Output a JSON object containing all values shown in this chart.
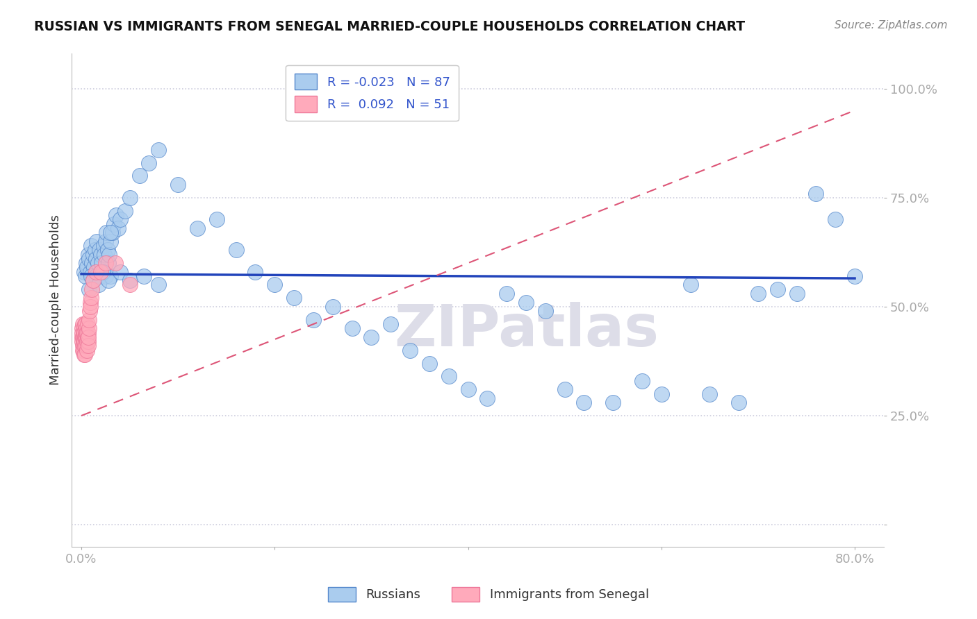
{
  "title": "RUSSIAN VS IMMIGRANTS FROM SENEGAL MARRIED-COUPLE HOUSEHOLDS CORRELATION CHART",
  "source": "Source: ZipAtlas.com",
  "ylabel": "Married-couple Households",
  "xlim": [
    -1.0,
    83.0
  ],
  "ylim": [
    -5.0,
    108.0
  ],
  "ytick_positions": [
    0,
    25,
    50,
    75,
    100
  ],
  "ytick_labels": [
    "",
    "25.0%",
    "50.0%",
    "75.0%",
    "100.0%"
  ],
  "xtick_positions": [
    0,
    20,
    40,
    60,
    80
  ],
  "xtick_labels": [
    "0.0%",
    "",
    "",
    "",
    "80.0%"
  ],
  "blue_color": "#AACCEE",
  "pink_color": "#FFAABB",
  "blue_edge_color": "#5588CC",
  "pink_edge_color": "#EE7799",
  "blue_line_color": "#2244BB",
  "pink_line_color": "#DD5577",
  "grid_color": "#CCCCDD",
  "tick_color": "#4466BB",
  "watermark_color": "#DDDDE8",
  "legend_R_blue": "-0.023",
  "legend_N_blue": "87",
  "legend_R_pink": "0.092",
  "legend_N_pink": "51",
  "blue_x": [
    0.3,
    0.4,
    0.5,
    0.6,
    0.7,
    0.8,
    0.9,
    1.0,
    1.1,
    1.2,
    1.3,
    1.4,
    1.5,
    1.6,
    1.7,
    1.8,
    1.9,
    2.0,
    2.1,
    2.2,
    2.3,
    2.4,
    2.5,
    2.6,
    2.7,
    2.8,
    2.9,
    3.0,
    3.2,
    3.4,
    3.6,
    3.8,
    4.0,
    4.5,
    5.0,
    6.0,
    7.0,
    8.0,
    10.0,
    12.0,
    14.0,
    16.0,
    18.0,
    20.0,
    22.0,
    24.0,
    26.0,
    28.0,
    30.0,
    32.0,
    34.0,
    36.0,
    38.0,
    40.0,
    42.0,
    44.0,
    46.0,
    48.0,
    50.0,
    52.0,
    55.0,
    58.0,
    60.0,
    63.0,
    65.0,
    68.0,
    70.0,
    72.0,
    74.0,
    76.0,
    78.0,
    80.0,
    1.0,
    1.5,
    2.0,
    2.5,
    3.0,
    3.0,
    0.8,
    1.2,
    1.8,
    2.2,
    2.8,
    4.0,
    5.0,
    6.5,
    8.0
  ],
  "blue_y": [
    58.0,
    57.0,
    60.0,
    59.0,
    62.0,
    61.0,
    58.0,
    64.0,
    60.0,
    62.0,
    59.0,
    63.0,
    61.0,
    65.0,
    60.0,
    57.0,
    63.0,
    62.0,
    60.0,
    58.0,
    64.0,
    62.0,
    65.0,
    67.0,
    63.0,
    60.0,
    62.0,
    65.0,
    67.0,
    69.0,
    71.0,
    68.0,
    70.0,
    72.0,
    75.0,
    80.0,
    83.0,
    86.0,
    78.0,
    68.0,
    70.0,
    63.0,
    58.0,
    55.0,
    52.0,
    47.0,
    50.0,
    45.0,
    43.0,
    46.0,
    40.0,
    37.0,
    34.0,
    31.0,
    29.0,
    53.0,
    51.0,
    49.0,
    31.0,
    28.0,
    28.0,
    33.0,
    30.0,
    55.0,
    30.0,
    28.0,
    53.0,
    54.0,
    53.0,
    76.0,
    70.0,
    57.0,
    57.0,
    57.0,
    57.0,
    57.0,
    57.0,
    67.0,
    54.0,
    56.0,
    55.0,
    58.0,
    56.0,
    58.0,
    56.0,
    57.0,
    55.0
  ],
  "pink_x": [
    0.05,
    0.07,
    0.09,
    0.1,
    0.12,
    0.14,
    0.15,
    0.17,
    0.18,
    0.2,
    0.22,
    0.23,
    0.25,
    0.27,
    0.28,
    0.3,
    0.32,
    0.33,
    0.35,
    0.37,
    0.38,
    0.4,
    0.42,
    0.43,
    0.45,
    0.47,
    0.48,
    0.5,
    0.52,
    0.55,
    0.58,
    0.6,
    0.62,
    0.65,
    0.68,
    0.7,
    0.72,
    0.75,
    0.78,
    0.8,
    0.85,
    0.9,
    0.95,
    1.0,
    1.1,
    1.2,
    1.5,
    2.0,
    2.5,
    3.5,
    5.0
  ],
  "pink_y": [
    43.0,
    45.0,
    42.0,
    44.0,
    41.0,
    40.0,
    46.0,
    43.0,
    42.0,
    45.0,
    40.0,
    44.0,
    43.0,
    41.0,
    39.0,
    42.0,
    44.0,
    46.0,
    43.0,
    41.0,
    39.0,
    44.0,
    42.0,
    46.0,
    43.0,
    41.0,
    45.0,
    43.0,
    44.0,
    42.0,
    40.0,
    44.0,
    43.0,
    46.0,
    42.0,
    44.0,
    41.0,
    43.0,
    45.0,
    47.0,
    49.0,
    51.0,
    50.0,
    52.0,
    54.0,
    56.0,
    58.0,
    58.0,
    60.0,
    60.0,
    55.0
  ],
  "blue_line_x0": 0.0,
  "blue_line_y0": 57.5,
  "blue_line_x1": 80.0,
  "blue_line_y1": 56.5,
  "pink_line_x0": 0.0,
  "pink_line_y0": 25.0,
  "pink_line_x1": 80.0,
  "pink_line_y1": 95.0
}
